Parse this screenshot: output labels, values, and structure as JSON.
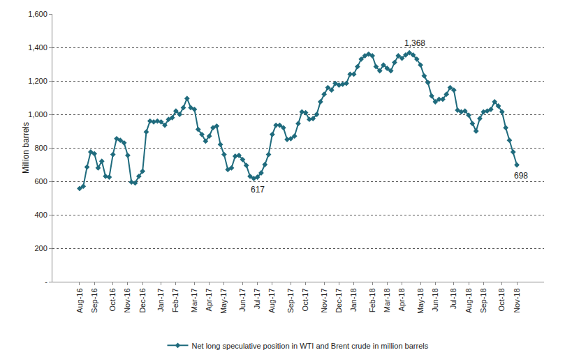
{
  "chart_data": {
    "type": "line",
    "y_label": "Million barrels",
    "categories": [
      "Aug-16",
      null,
      null,
      null,
      "Sep-16",
      null,
      null,
      null,
      null,
      "Oct-16",
      null,
      null,
      null,
      "Nov-16",
      null,
      null,
      null,
      "Dec-16",
      null,
      null,
      null,
      null,
      "Jan-17",
      null,
      null,
      null,
      "Feb-17",
      null,
      null,
      null,
      null,
      "Mar-17",
      null,
      null,
      null,
      "Apr-17",
      null,
      null,
      null,
      "May-17",
      null,
      null,
      null,
      null,
      "Jun-17",
      null,
      null,
      null,
      "Jul-17",
      null,
      null,
      null,
      "Aug-17",
      null,
      null,
      null,
      null,
      "Sep-17",
      null,
      null,
      null,
      "Oct-17",
      null,
      null,
      null,
      null,
      "Nov-17",
      null,
      null,
      null,
      "Dec-17",
      null,
      null,
      null,
      "Jan-18",
      null,
      null,
      null,
      null,
      "Feb-18",
      null,
      null,
      null,
      "Mar-18",
      null,
      null,
      null,
      "Apr-18",
      null,
      null,
      null,
      null,
      "May-18",
      null,
      null,
      null,
      "Jun-18",
      null,
      null,
      null,
      null,
      "Jul-18",
      null,
      null,
      null,
      "Aug-18",
      null,
      null,
      null,
      "Sep-18",
      null,
      null,
      null,
      null,
      "Oct-18",
      null,
      null,
      null,
      "Nov-18"
    ],
    "series": [
      {
        "name": "Net long speculative position in WTI and Brent crude in million barrels",
        "color": "#1f6b7d",
        "marker": "diamond",
        "line_style": "solid",
        "values": [
          557,
          570,
          685,
          775,
          765,
          680,
          720,
          630,
          625,
          760,
          855,
          845,
          830,
          755,
          595,
          590,
          630,
          660,
          895,
          960,
          955,
          960,
          955,
          935,
          970,
          980,
          1020,
          1000,
          1040,
          1095,
          1040,
          1030,
          910,
          880,
          840,
          870,
          920,
          930,
          820,
          760,
          670,
          680,
          750,
          755,
          730,
          695,
          630,
          617,
          625,
          650,
          700,
          760,
          880,
          935,
          935,
          920,
          850,
          855,
          870,
          945,
          1015,
          1010,
          970,
          975,
          1000,
          1075,
          1120,
          1160,
          1145,
          1185,
          1175,
          1180,
          1185,
          1240,
          1240,
          1285,
          1330,
          1350,
          1360,
          1350,
          1285,
          1260,
          1295,
          1275,
          1260,
          1310,
          1350,
          1335,
          1355,
          1368,
          1355,
          1330,
          1295,
          1230,
          1190,
          1110,
          1075,
          1090,
          1090,
          1120,
          1160,
          1145,
          1025,
          1015,
          1020,
          995,
          945,
          900,
          975,
          1015,
          1020,
          1030,
          1075,
          1050,
          1015,
          920,
          845,
          775,
          698
        ]
      }
    ],
    "annotations": [
      {
        "text": "617",
        "value": 617
      },
      {
        "text": "1,368",
        "value": 1368
      },
      {
        "text": "698",
        "value": 698
      }
    ],
    "ylim": [
      0,
      1600
    ],
    "yticks": [
      {
        "value": 0,
        "label": "-"
      },
      200,
      400,
      600,
      800,
      {
        "value": 1000,
        "label": "1,000"
      },
      {
        "value": 1200,
        "label": "1,200"
      },
      {
        "value": 1400,
        "label": "1,400"
      },
      {
        "value": 1600,
        "label": "1,600"
      }
    ],
    "grid": true,
    "legend": "bottom"
  }
}
